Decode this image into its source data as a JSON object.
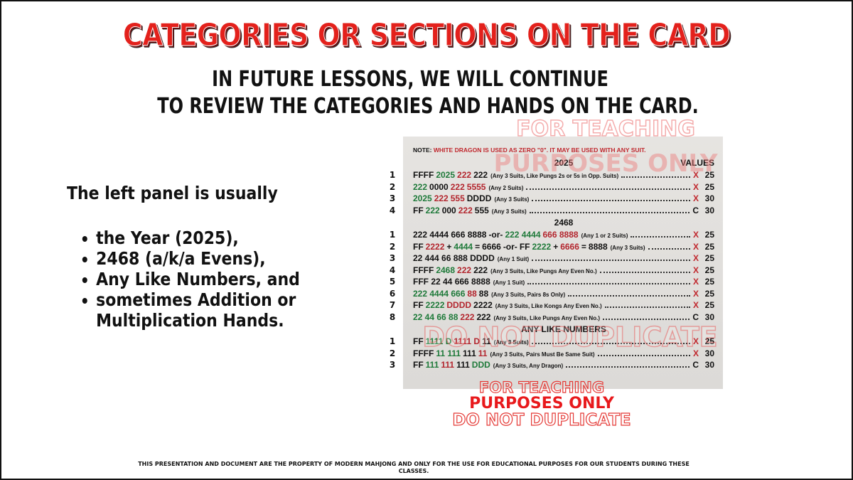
{
  "title": "CATEGORIES OR SECTIONS ON THE CARD",
  "subtitle": [
    "IN FUTURE LESSONS, WE WILL CONTINUE",
    "TO REVIEW THE CATEGORIES AND HANDS ON THE CARD."
  ],
  "left_panel": {
    "intro": "The left panel is usually",
    "bullets": [
      "the Year (2025),",
      "2468 (a/k/a Evens),",
      "Any Like Numbers, and",
      "sometimes Addition or Multiplication Hands."
    ]
  },
  "card": {
    "note": {
      "label": "NOTE:",
      "text": "WHITE DRAGON IS USED AS ZERO \"0\". IT MAY BE USED WITH ANY SUIT."
    },
    "values_header": "VALUES",
    "sections": [
      {
        "title": "2025",
        "hands": [
          {
            "number": 1,
            "tiles": [
              {
                "text": "FFFF",
                "color": "#111111"
              },
              {
                "text": "2025",
                "color": "#1f7a3a"
              },
              {
                "text": "222",
                "color": "#b3262e"
              },
              {
                "text": "222",
                "color": "#111111"
              }
            ],
            "note": "(Any 3 Suits, Like Pungs 2s or 5s in Opp. Suits)",
            "value": {
              "type": "X",
              "color": "#c0282e",
              "points": 25
            }
          },
          {
            "number": 2,
            "tiles": [
              {
                "text": "222",
                "color": "#1f7a3a"
              },
              {
                "text": "0000",
                "color": "#111111"
              },
              {
                "text": "222",
                "color": "#b3262e"
              },
              {
                "text": "5555",
                "color": "#b3262e"
              }
            ],
            "note": "(Any 2 Suits)",
            "value": {
              "type": "X",
              "color": "#c0282e",
              "points": 25
            }
          },
          {
            "number": 3,
            "tiles": [
              {
                "text": "2025",
                "color": "#1f7a3a"
              },
              {
                "text": "222",
                "color": "#b3262e"
              },
              {
                "text": "555",
                "color": "#b3262e"
              },
              {
                "text": "DDDD",
                "color": "#111111"
              }
            ],
            "note": "(Any 3 Suits)",
            "value": {
              "type": "X",
              "color": "#c0282e",
              "points": 30
            }
          },
          {
            "number": 4,
            "tiles": [
              {
                "text": "FF",
                "color": "#111111"
              },
              {
                "text": "222",
                "color": "#1f7a3a"
              },
              {
                "text": "000",
                "color": "#111111"
              },
              {
                "text": "222",
                "color": "#b3262e"
              },
              {
                "text": "555",
                "color": "#111111"
              }
            ],
            "note": "(Any 3 Suits)",
            "value": {
              "type": "C",
              "color": "#111111",
              "points": 30
            }
          }
        ]
      },
      {
        "title": "2468",
        "hands": [
          {
            "number": 1,
            "tiles": [
              {
                "text": "222 4444 666 8888",
                "color": "#111111"
              },
              {
                "text": "-or-",
                "color": "#111111"
              },
              {
                "text": "222 4444",
                "color": "#1f7a3a"
              },
              {
                "text": "666 8888",
                "color": "#b3262e"
              }
            ],
            "note": "(Any 1 or 2 Suits)",
            "value": {
              "type": "X",
              "color": "#c0282e",
              "points": 25
            }
          },
          {
            "number": 2,
            "tiles": [
              {
                "text": "FF",
                "color": "#111111"
              },
              {
                "text": "2222",
                "color": "#b3262e"
              },
              {
                "text": "+",
                "color": "#111111"
              },
              {
                "text": "4444",
                "color": "#1f7a3a"
              },
              {
                "text": "=",
                "color": "#111111"
              },
              {
                "text": "6666",
                "color": "#111111"
              },
              {
                "text": "-or-",
                "color": "#111111"
              },
              {
                "text": "FF",
                "color": "#111111"
              },
              {
                "text": "2222",
                "color": "#1f7a3a"
              },
              {
                "text": "+",
                "color": "#111111"
              },
              {
                "text": "6666",
                "color": "#b3262e"
              },
              {
                "text": "=",
                "color": "#111111"
              },
              {
                "text": "8888",
                "color": "#111111"
              }
            ],
            "note": "(Any 3 Suits)",
            "value": {
              "type": "X",
              "color": "#c0282e",
              "points": 25
            }
          },
          {
            "number": 3,
            "tiles": [
              {
                "text": "22 444 66 888 DDDD",
                "color": "#111111"
              }
            ],
            "note": "(Any 1 Suit)",
            "value": {
              "type": "X",
              "color": "#c0282e",
              "points": 25
            }
          },
          {
            "number": 4,
            "tiles": [
              {
                "text": "FFFF",
                "color": "#111111"
              },
              {
                "text": "2468",
                "color": "#1f7a3a"
              },
              {
                "text": "222",
                "color": "#b3262e"
              },
              {
                "text": "222",
                "color": "#111111"
              }
            ],
            "note": "(Any 3 Suits, Like Pungs Any Even No.)",
            "value": {
              "type": "X",
              "color": "#c0282e",
              "points": 25
            }
          },
          {
            "number": 5,
            "tiles": [
              {
                "text": "FFF 22 44 666 8888",
                "color": "#111111"
              }
            ],
            "note": "(Any 1 Suit)",
            "value": {
              "type": "X",
              "color": "#c0282e",
              "points": 25
            }
          },
          {
            "number": 6,
            "tiles": [
              {
                "text": "222 4444 666",
                "color": "#1f7a3a"
              },
              {
                "text": "88",
                "color": "#b3262e"
              },
              {
                "text": "88",
                "color": "#111111"
              }
            ],
            "note": "(Any 3 Suits, Pairs 8s Only)",
            "value": {
              "type": "X",
              "color": "#c0282e",
              "points": 25
            }
          },
          {
            "number": 7,
            "tiles": [
              {
                "text": "FF",
                "color": "#111111"
              },
              {
                "text": "2222",
                "color": "#1f7a3a"
              },
              {
                "text": "DDDD",
                "color": "#b3262e"
              },
              {
                "text": "2222",
                "color": "#111111"
              }
            ],
            "note": "(Any 3 Suits, Like Kongs Any Even No.)",
            "value": {
              "type": "X",
              "color": "#c0282e",
              "points": 25
            }
          },
          {
            "number": 8,
            "tiles": [
              {
                "text": "22 44 66 88",
                "color": "#1f7a3a"
              },
              {
                "text": "222",
                "color": "#b3262e"
              },
              {
                "text": "222",
                "color": "#111111"
              }
            ],
            "note": "(Any 3 Suits, Like Pungs Any Even No.)",
            "value": {
              "type": "C",
              "color": "#111111",
              "points": 30
            }
          }
        ]
      },
      {
        "title": "ANY LIKE NUMBERS",
        "hands": [
          {
            "number": 1,
            "tiles": [
              {
                "text": "FF",
                "color": "#111111"
              },
              {
                "text": "1111 D",
                "color": "#1f7a3a"
              },
              {
                "text": "1111 D",
                "color": "#b3262e"
              },
              {
                "text": "11",
                "color": "#111111"
              }
            ],
            "note": "(Any 3 Suits)",
            "value": {
              "type": "X",
              "color": "#c0282e",
              "points": 25
            }
          },
          {
            "number": 2,
            "tiles": [
              {
                "text": "FFFF",
                "color": "#111111"
              },
              {
                "text": "11 111",
                "color": "#1f7a3a"
              },
              {
                "text": "111",
                "color": "#111111"
              },
              {
                "text": "11",
                "color": "#b3262e"
              }
            ],
            "note": "(Any 3 Suits, Pairs Must Be Same Suit)",
            "value": {
              "type": "X",
              "color": "#c0282e",
              "points": 30
            }
          },
          {
            "number": 3,
            "tiles": [
              {
                "text": "FF",
                "color": "#111111"
              },
              {
                "text": "111",
                "color": "#1f7a3a"
              },
              {
                "text": "111",
                "color": "#b3262e"
              },
              {
                "text": "111",
                "color": "#111111"
              },
              {
                "text": "DDD",
                "color": "#1f7a3a"
              }
            ],
            "note": "(Any 3 Suits, Any Dragon)",
            "value": {
              "type": "C",
              "color": "#111111",
              "points": 30
            }
          }
        ]
      }
    ]
  },
  "watermarks": {
    "card": [
      "FOR TEACHING",
      "PURPOSES ONLY",
      "DO NOT DUPLICATE"
    ],
    "bottom": [
      "FOR TEACHING",
      "PURPOSES ONLY",
      "DO NOT DUPLICATE"
    ]
  },
  "footer": "THIS PRESENTATION AND DOCUMENT ARE THE PROPERTY OF MODERN MAHJONG AND ONLY FOR THE USE FOR EDUCATIONAL PURPOSES FOR OUR STUDENTS DURING THESE CLASSES."
}
